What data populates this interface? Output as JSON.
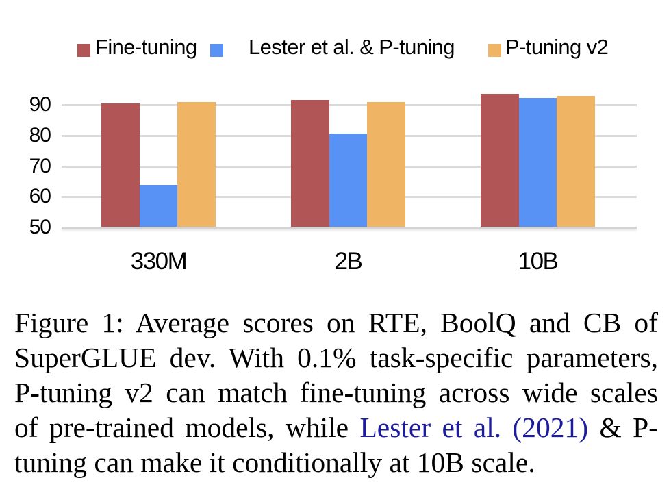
{
  "legend": {
    "items": [
      {
        "label": "Fine-tuning",
        "color": "#b15556"
      },
      {
        "label": "Lester et al. & P-tuning",
        "color": "#5892f4"
      },
      {
        "label": "P-tuning v2",
        "color": "#efb565"
      }
    ]
  },
  "chart_data": {
    "type": "bar",
    "title": "",
    "xlabel": "",
    "ylabel": "",
    "categories": [
      "330M",
      "2B",
      "10B"
    ],
    "series": [
      {
        "name": "Fine-tuning",
        "color": "#b15556",
        "values": [
          90.4,
          91.6,
          93.6
        ]
      },
      {
        "name": "Lester et al. & P-tuning",
        "color": "#5892f4",
        "values": [
          63.8,
          80.6,
          92.2
        ]
      },
      {
        "name": "P-tuning v2",
        "color": "#efb565",
        "values": [
          91.0,
          90.9,
          93.0
        ]
      }
    ],
    "ylim": [
      50,
      95.5
    ],
    "y_ticks": [
      50,
      60,
      70,
      80,
      90
    ],
    "grid": true,
    "gridline_color": "#dadada",
    "legend_position": "top"
  },
  "caption": {
    "line1": "Figure 1: Average scores on RTE, BoolQ and CB of",
    "line2": "SuperGLUE dev. With 0.1% task-specific parameters,",
    "line3": "P-tuning v2 can match fine-tuning across wide scales",
    "line4_pre": "of pre-trained models, while ",
    "line4_cite": "Lester et al. (2021)",
    "line4_post": " & P-",
    "line5": "tuning can make it conditionally at 10B scale."
  }
}
